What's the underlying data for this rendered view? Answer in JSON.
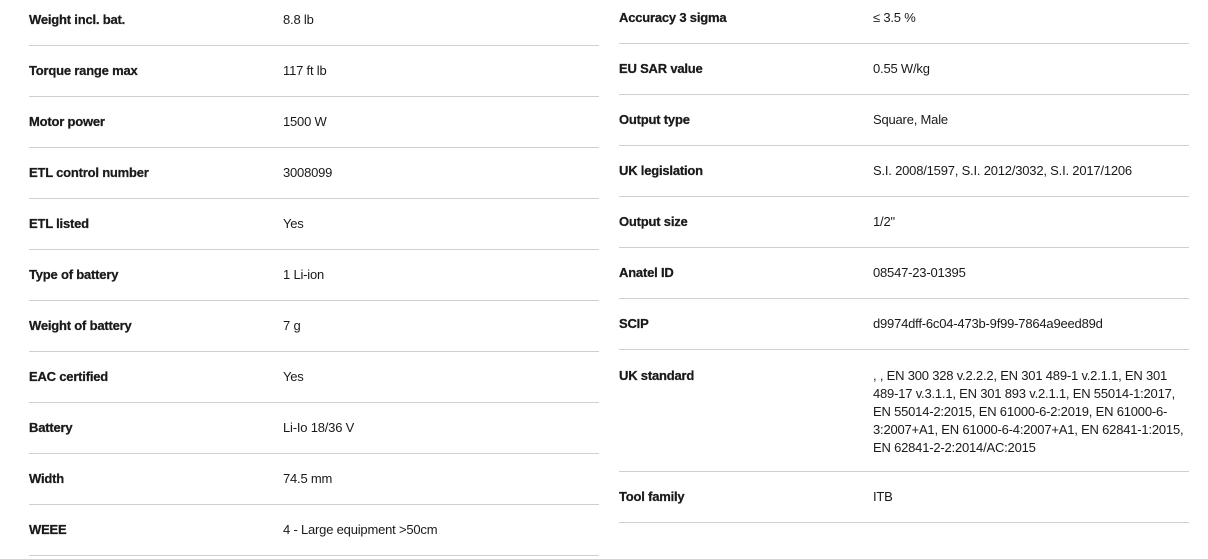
{
  "left": [
    {
      "label": "Weight incl. bat.",
      "value": "8.8 lb"
    },
    {
      "label": "Torque range max",
      "value": "117 ft lb"
    },
    {
      "label": "Motor power",
      "value": "1500 W"
    },
    {
      "label": "ETL control number",
      "value": "3008099"
    },
    {
      "label": "ETL listed",
      "value": "Yes"
    },
    {
      "label": "Type of battery",
      "value": "1 Li-ion"
    },
    {
      "label": "Weight of battery",
      "value": "7 g"
    },
    {
      "label": "EAC certified",
      "value": "Yes"
    },
    {
      "label": "Battery",
      "value": "Li-Io 18/36 V"
    },
    {
      "label": "Width",
      "value": "74.5 mm"
    },
    {
      "label": "WEEE",
      "value": "4 - Large equipment >50cm"
    }
  ],
  "right": [
    {
      "label": "Accuracy 3 sigma",
      "value": "≤ 3.5 %"
    },
    {
      "label": "EU SAR value",
      "value": "0.55 W/kg"
    },
    {
      "label": "Output type",
      "value": "Square, Male"
    },
    {
      "label": "UK legislation",
      "value": "S.I. 2008/1597, S.I. 2012/3032, S.I. 2017/1206"
    },
    {
      "label": "Output size",
      "value": "1/2\""
    },
    {
      "label": "Anatel ID",
      "value": "08547-23-01395"
    },
    {
      "label": "SCIP",
      "value": "d9974dff-6c04-473b-9f99-7864a9eed89d"
    },
    {
      "label": "UK standard",
      "value": ", , EN 300 328 v.2.2.2, EN 301 489-1 v.2.1.1, EN 301 489-17 v.3.1.1, EN 301 893 v.2.1.1, EN 55014-1:2017, EN 55014-2:2015, EN 61000-6-2:2019, EN 61000-6-3:2007+A1, EN 61000-6-4:2007+A1, EN 62841-1:2015, EN 62841-2-2:2014/AC:2015"
    },
    {
      "label": "Tool family",
      "value": "ITB"
    }
  ]
}
